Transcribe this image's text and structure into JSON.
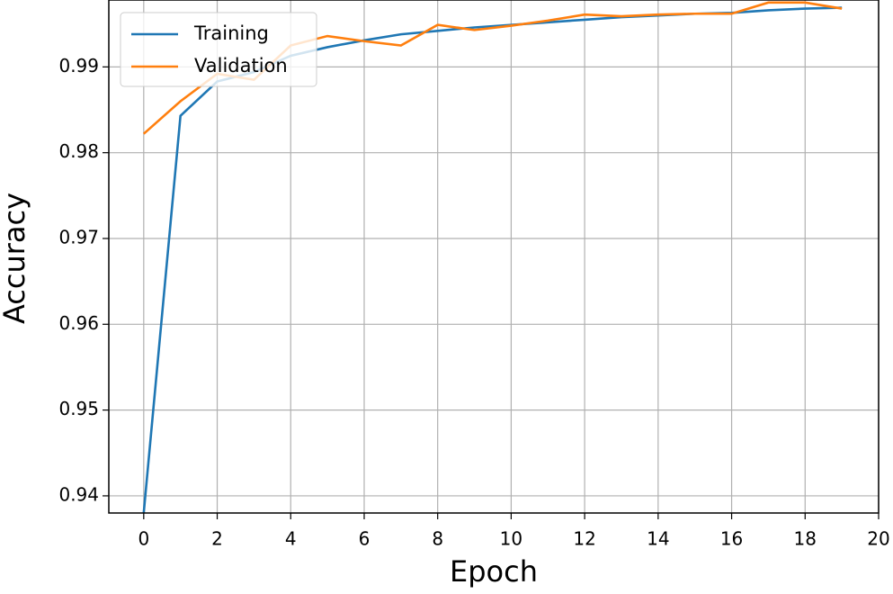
{
  "chart_data": {
    "type": "line",
    "x_label": "Epoch",
    "y_label": "Accuracy",
    "x": [
      0,
      1,
      2,
      3,
      4,
      5,
      6,
      7,
      8,
      9,
      10,
      11,
      12,
      13,
      14,
      15,
      16,
      17,
      18,
      19
    ],
    "series": [
      {
        "name": "Training",
        "color": "#1f77b4",
        "values": [
          0.938,
          0.9843,
          0.9883,
          0.9894,
          0.9913,
          0.9923,
          0.9931,
          0.9938,
          0.9942,
          0.9946,
          0.9949,
          0.9952,
          0.9955,
          0.9958,
          0.996,
          0.9962,
          0.9963,
          0.9966,
          0.9968,
          0.9969
        ]
      },
      {
        "name": "Validation",
        "color": "#ff7f0e",
        "values": [
          0.9822,
          0.986,
          0.9892,
          0.9885,
          0.9925,
          0.9936,
          0.993,
          0.9925,
          0.9949,
          0.9943,
          0.9948,
          0.9954,
          0.9961,
          0.9959,
          0.9961,
          0.9962,
          0.9962,
          0.9975,
          0.9975,
          0.9968
        ]
      }
    ],
    "xlim": [
      -0.95,
      20
    ],
    "ylim": [
      0.938,
      0.9978
    ],
    "xticks": [
      0,
      2,
      4,
      6,
      8,
      10,
      12,
      14,
      16,
      18,
      20
    ],
    "yticks": [
      0.94,
      0.95,
      0.96,
      0.97,
      0.98,
      0.99
    ],
    "grid": true,
    "legend": "upper left"
  }
}
